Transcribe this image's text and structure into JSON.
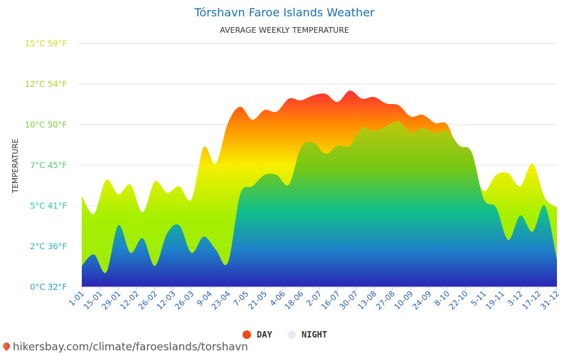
{
  "title": "Tórshavn Faroe Islands Weather",
  "subtitle": "AVERAGE WEEKLY TEMPERATURE",
  "source": "hikersbay.com/climate/faroeslands/torshavn",
  "chart_data": {
    "type": "area",
    "ylabel": "TEMPERATURE",
    "ylim": [
      0,
      15
    ],
    "y_ticks": [
      {
        "value": 0,
        "label": "0°C 32°F",
        "color": "#1fa0c8"
      },
      {
        "value": 2.5,
        "label": "2°C 36°F",
        "color": "#1fb8b8"
      },
      {
        "value": 5,
        "label": "5°C 41°F",
        "color": "#22c9a8"
      },
      {
        "value": 7.5,
        "label": "7°C 45°F",
        "color": "#4cc964"
      },
      {
        "value": 10,
        "label": "10°C 50°F",
        "color": "#7ccf2a"
      },
      {
        "value": 12.5,
        "label": "12°C 54°F",
        "color": "#a4d61e"
      },
      {
        "value": 15,
        "label": "15°C 59°F",
        "color": "#c8de1e"
      }
    ],
    "x_labels": [
      "1-01",
      "15-01",
      "29-01",
      "12-02",
      "26-02",
      "12-03",
      "26-03",
      "9-04",
      "23-04",
      "7-05",
      "21-05",
      "4-06",
      "18-06",
      "2-07",
      "16-07",
      "30-07",
      "13-08",
      "27-08",
      "10-09",
      "24-09",
      "8-10",
      "22-10",
      "5-11",
      "19-11",
      "3-12",
      "17-12",
      "31-12"
    ],
    "grid": true,
    "legend_position": "bottom",
    "series": [
      {
        "name": "DAY",
        "color": "#ee4b0c",
        "values": [
          5.6,
          4.5,
          6.6,
          5.7,
          6.3,
          4.6,
          6.5,
          5.8,
          6.2,
          5.4,
          8.6,
          7.6,
          10.1,
          11.1,
          10.3,
          10.9,
          10.8,
          11.6,
          11.5,
          11.8,
          11.9,
          11.4,
          12.1,
          11.6,
          11.7,
          11.3,
          11.2,
          10.5,
          10.6,
          10.1,
          10.0,
          8.2,
          7.5,
          5.9,
          6.9,
          7.0,
          6.2,
          7.6,
          5.5,
          4.9
        ]
      },
      {
        "name": "NIGHT",
        "color": "#e4ecf2",
        "values": [
          1.3,
          2.0,
          0.9,
          3.8,
          2.1,
          3.0,
          1.3,
          3.3,
          3.8,
          2.1,
          3.1,
          2.3,
          1.5,
          5.7,
          6.2,
          6.9,
          6.9,
          6.3,
          8.6,
          8.9,
          8.2,
          8.7,
          8.7,
          9.8,
          9.6,
          9.9,
          10.2,
          9.5,
          9.8,
          9.5,
          9.6,
          8.7,
          8.3,
          5.4,
          4.9,
          2.9,
          4.4,
          3.4,
          5.0,
          1.7
        ]
      }
    ]
  }
}
